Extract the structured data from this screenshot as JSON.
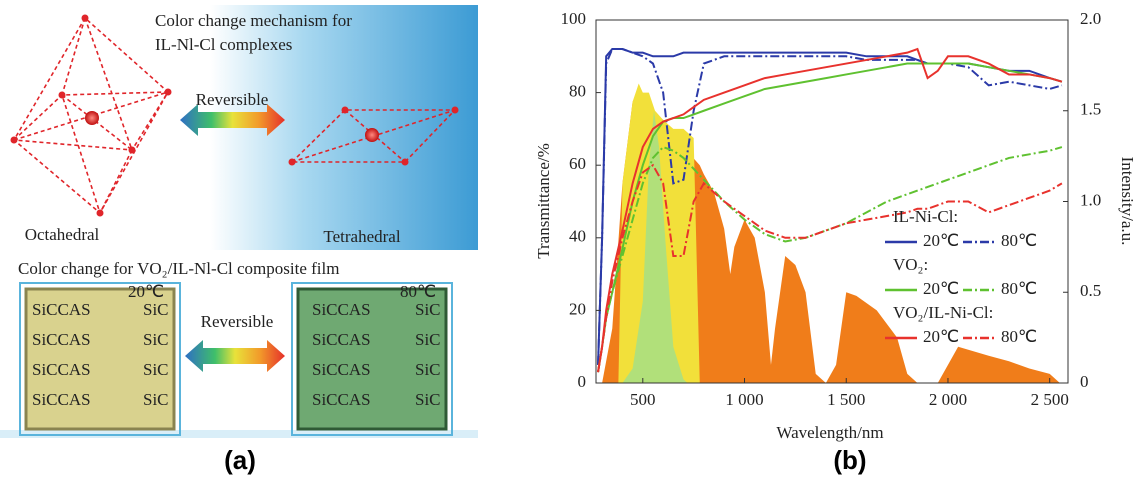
{
  "panel_a": {
    "title_lines": [
      "Color change mechanism for",
      "IL-Nl-Cl complexes"
    ],
    "arrow_label_top": "Reversible",
    "left_label": "Octahedral",
    "right_label": "Tetrahedral",
    "film_title": "Color change for VO₂/IL-Nl-Cl composite film",
    "arrow_label_bottom": "Reversible",
    "films": [
      {
        "temperature": "20℃",
        "rows": [
          [
            "SiCCAS",
            "SiC"
          ],
          [
            "SiCCAS",
            "SiC"
          ],
          [
            "SiCCAS",
            "SiC"
          ],
          [
            "SiCCAS",
            "SiC"
          ]
        ]
      },
      {
        "temperature": "80℃",
        "rows": [
          [
            "SiCCAS",
            "SiC"
          ],
          [
            "SiCCAS",
            "SiC"
          ],
          [
            "SiCCAS",
            "SiC"
          ],
          [
            "SiCCAS",
            "SiC"
          ]
        ]
      }
    ],
    "panel_label": "(a)"
  },
  "chart_data": {
    "type": "line",
    "x_label": "Wavelength/nm",
    "y_label": "Transmittance/%",
    "y2_label": "Intensity/a.u.",
    "panel_label": "(b)",
    "xlim": [
      270,
      2590
    ],
    "xticks": [
      500,
      {
        "value": 1000,
        "label": "1 000"
      },
      {
        "value": 1500,
        "label": "1 500"
      },
      {
        "value": 2000,
        "label": "2 000"
      },
      {
        "value": 2500,
        "label": "2 500"
      }
    ],
    "ylim": [
      0,
      100
    ],
    "yticks": [
      0,
      20,
      40,
      60,
      80,
      100
    ],
    "y2lim": [
      0,
      2
    ],
    "y2ticks": [
      0,
      0.5,
      {
        "value": 1,
        "label": "1.0"
      },
      1.5,
      {
        "value": 2,
        "label": "2.0"
      }
    ],
    "x": [
      280,
      300,
      320,
      350,
      400,
      450,
      500,
      550,
      600,
      650,
      700,
      750,
      800,
      900,
      1000,
      1100,
      1200,
      1300,
      1400,
      1500,
      1600,
      1700,
      1800,
      1850,
      1900,
      1950,
      2000,
      2100,
      2200,
      2300,
      2400,
      2500,
      2560
    ],
    "series_groups": [
      {
        "name": "IL-Ni-Cl:",
        "series": [
          {
            "name": "20℃",
            "color": "#2b3aa8",
            "style": "solid",
            "values": [
              5,
              40,
              90,
              92,
              92,
              91,
              91,
              90,
              90,
              90,
              91,
              91,
              91,
              91,
              91,
              91,
              91,
              91,
              91,
              91,
              90,
              90,
              90,
              89,
              88,
              88,
              88,
              88,
              87,
              86,
              86,
              84,
              83
            ]
          },
          {
            "name": "80℃",
            "color": "#2b3aa8",
            "style": "dashdot",
            "values": [
              5,
              40,
              88,
              92,
              92,
              91,
              90,
              88,
              80,
              55,
              56,
              75,
              88,
              90,
              90,
              90,
              90,
              90,
              90,
              90,
              89,
              89,
              89,
              89,
              88,
              88,
              88,
              87,
              82,
              83,
              82,
              81,
              82
            ]
          }
        ]
      },
      {
        "name": "VO₂:",
        "series": [
          {
            "name": "20℃",
            "color": "#5fc130",
            "style": "solid",
            "values": [
              3,
              10,
              18,
              25,
              37,
              50,
              60,
              68,
              72,
              73,
              73,
              74,
              75,
              77,
              79,
              81,
              82,
              83,
              84,
              85,
              86,
              87,
              88,
              88,
              88,
              88,
              88,
              88,
              87,
              86,
              85,
              84,
              83
            ]
          },
          {
            "name": "80℃",
            "color": "#5fc130",
            "style": "dashdot",
            "values": [
              3,
              10,
              18,
              25,
              35,
              45,
              55,
              62,
              65,
              64,
              62,
              59,
              56,
              50,
              45,
              41,
              39,
              40,
              42,
              44,
              47,
              50,
              52,
              53,
              54,
              55,
              56,
              58,
              60,
              62,
              63,
              64,
              65
            ]
          }
        ]
      },
      {
        "name": "VO₂/IL-Ni-Cl:",
        "series": [
          {
            "name": "20℃",
            "color": "#e8322d",
            "style": "solid",
            "values": [
              3,
              10,
              20,
              30,
              42,
              55,
              65,
              70,
              72,
              73,
              74,
              76,
              78,
              80,
              82,
              84,
              85,
              86,
              87,
              88,
              89,
              90,
              91,
              92,
              84,
              86,
              90,
              90,
              88,
              85,
              85,
              84,
              83
            ]
          },
          {
            "name": "80℃",
            "color": "#e8322d",
            "style": "dashdot",
            "values": [
              3,
              10,
              18,
              28,
              40,
              50,
              58,
              60,
              55,
              35,
              35,
              50,
              55,
              50,
              46,
              42,
              40,
              40,
              42,
              44,
              45,
              46,
              47,
              48,
              48,
              49,
              50,
              50,
              47,
              49,
              51,
              53,
              55
            ]
          }
        ]
      }
    ],
    "area_series": [
      {
        "color": "#f07d1a",
        "axis": "y2",
        "x": [
          300,
          350,
          400,
          450,
          500,
          550,
          600,
          700,
          780,
          800,
          850,
          900,
          930,
          950,
          1000,
          1050,
          1100,
          1130,
          1150,
          1200,
          1250,
          1300,
          1350,
          1400,
          1450,
          1500,
          1550,
          1650,
          1750,
          1800,
          1850,
          1950,
          2000,
          2050,
          2200,
          2300,
          2400,
          2500,
          2550
        ],
        "values": [
          0,
          0.3,
          1.1,
          1.55,
          1.6,
          1.5,
          1.45,
          1.3,
          1.2,
          1.15,
          1.05,
          0.85,
          0.6,
          0.75,
          0.9,
          0.8,
          0.5,
          0.1,
          0.3,
          0.7,
          0.65,
          0.5,
          0.05,
          0,
          0.1,
          0.5,
          0.48,
          0.4,
          0.25,
          0.05,
          0,
          0,
          0.1,
          0.2,
          0.15,
          0.12,
          0.08,
          0.05,
          0
        ]
      },
      {
        "color": "#f2e03a",
        "axis": "y2",
        "x": [
          380,
          400,
          450,
          480,
          500,
          530,
          560,
          600,
          650,
          700,
          750,
          780
        ],
        "values": [
          0,
          1.1,
          1.55,
          1.65,
          1.6,
          1.6,
          1.5,
          1.45,
          1.4,
          1.4,
          1.35,
          0
        ]
      },
      {
        "color": "#a6df86",
        "axis": "y2",
        "x": [
          400,
          450,
          500,
          530,
          555,
          580,
          610,
          650,
          700,
          720
        ],
        "values": [
          0,
          0.08,
          0.45,
          1.2,
          1.5,
          1.3,
          0.8,
          0.2,
          0.02,
          0
        ]
      }
    ]
  }
}
